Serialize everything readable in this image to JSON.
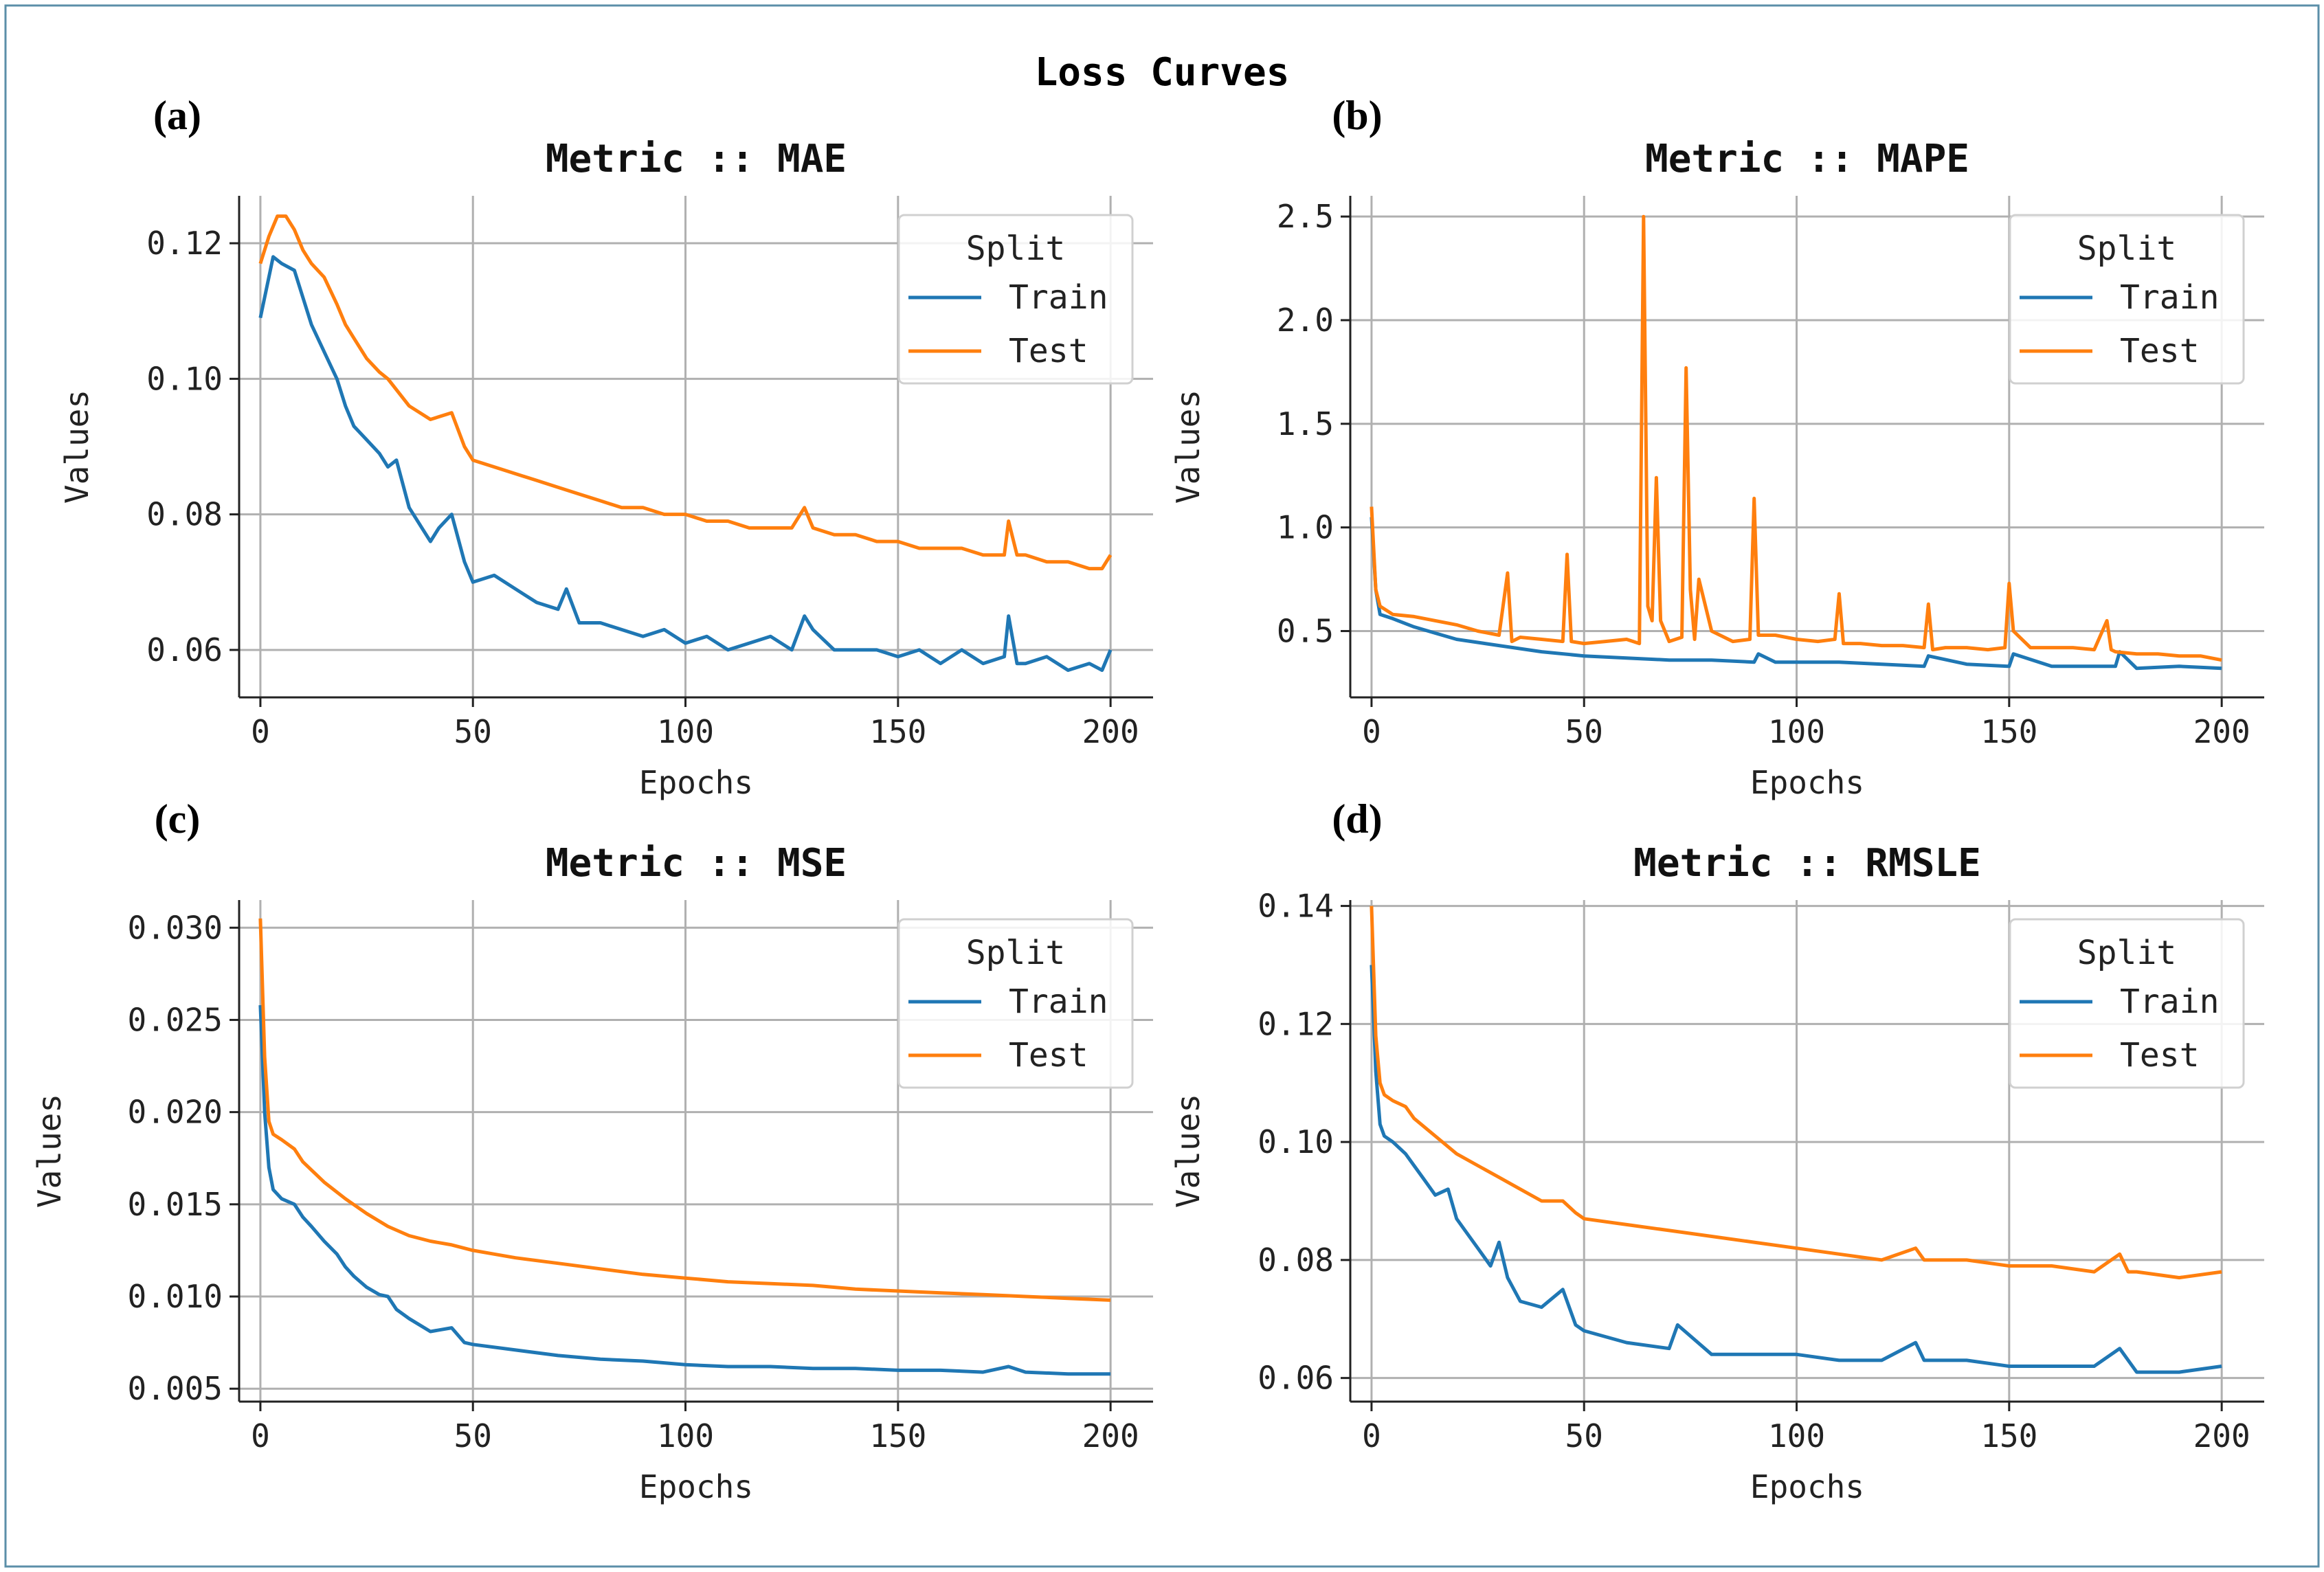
{
  "figure": {
    "title": "Loss Curves",
    "colors": {
      "train": "#1f77b4",
      "test": "#ff7f0e",
      "grid": "#b0b0b0",
      "border": "#5b8fa8"
    }
  },
  "chart_data": [
    {
      "panel_label": "(a)",
      "type": "line",
      "title": "Metric :: MAE",
      "xlabel": "Epochs",
      "ylabel": "Values",
      "xlim": [
        -5,
        210
      ],
      "ylim": [
        0.053,
        0.127
      ],
      "xticks": [
        0,
        50,
        100,
        150,
        200
      ],
      "yticks": [
        0.06,
        0.08,
        0.1,
        0.12
      ],
      "ytick_labels": [
        "0.06",
        "0.08",
        "0.10",
        "0.12"
      ],
      "grid": true,
      "legend": {
        "title": "Split",
        "position": "top-right",
        "entries": [
          "Train",
          "Test"
        ]
      },
      "series": [
        {
          "name": "Train",
          "x": [
            0,
            3,
            5,
            8,
            10,
            12,
            15,
            18,
            20,
            22,
            25,
            28,
            30,
            32,
            35,
            38,
            40,
            42,
            45,
            48,
            50,
            55,
            60,
            65,
            70,
            72,
            75,
            80,
            85,
            90,
            95,
            100,
            105,
            110,
            115,
            120,
            125,
            128,
            130,
            135,
            140,
            145,
            150,
            155,
            160,
            165,
            170,
            175,
            176,
            178,
            180,
            185,
            190,
            195,
            198,
            200
          ],
          "values": [
            0.109,
            0.118,
            0.117,
            0.116,
            0.112,
            0.108,
            0.104,
            0.1,
            0.096,
            0.093,
            0.091,
            0.089,
            0.087,
            0.088,
            0.081,
            0.078,
            0.076,
            0.078,
            0.08,
            0.073,
            0.07,
            0.071,
            0.069,
            0.067,
            0.066,
            0.069,
            0.064,
            0.064,
            0.063,
            0.062,
            0.063,
            0.061,
            0.062,
            0.06,
            0.061,
            0.062,
            0.06,
            0.065,
            0.063,
            0.06,
            0.06,
            0.06,
            0.059,
            0.06,
            0.058,
            0.06,
            0.058,
            0.059,
            0.065,
            0.058,
            0.058,
            0.059,
            0.057,
            0.058,
            0.057,
            0.06
          ]
        },
        {
          "name": "Test",
          "x": [
            0,
            2,
            4,
            6,
            8,
            10,
            12,
            15,
            18,
            20,
            22,
            25,
            28,
            30,
            35,
            40,
            45,
            48,
            50,
            55,
            60,
            65,
            70,
            75,
            80,
            85,
            90,
            95,
            100,
            105,
            110,
            115,
            120,
            125,
            128,
            130,
            135,
            140,
            145,
            150,
            155,
            160,
            165,
            170,
            175,
            176,
            178,
            180,
            185,
            190,
            195,
            198,
            200
          ],
          "values": [
            0.117,
            0.121,
            0.124,
            0.124,
            0.122,
            0.119,
            0.117,
            0.115,
            0.111,
            0.108,
            0.106,
            0.103,
            0.101,
            0.1,
            0.096,
            0.094,
            0.095,
            0.09,
            0.088,
            0.087,
            0.086,
            0.085,
            0.084,
            0.083,
            0.082,
            0.081,
            0.081,
            0.08,
            0.08,
            0.079,
            0.079,
            0.078,
            0.078,
            0.078,
            0.081,
            0.078,
            0.077,
            0.077,
            0.076,
            0.076,
            0.075,
            0.075,
            0.075,
            0.074,
            0.074,
            0.079,
            0.074,
            0.074,
            0.073,
            0.073,
            0.072,
            0.072,
            0.074
          ]
        }
      ]
    },
    {
      "panel_label": "(b)",
      "type": "line",
      "title": "Metric :: MAPE",
      "xlabel": "Epochs",
      "ylabel": "Values",
      "xlim": [
        -5,
        210
      ],
      "ylim": [
        0.18,
        2.6
      ],
      "xticks": [
        0,
        50,
        100,
        150,
        200
      ],
      "yticks": [
        0.5,
        1.0,
        1.5,
        2.0,
        2.5
      ],
      "ytick_labels": [
        "0.5",
        "1.0",
        "1.5",
        "2.0",
        "2.5"
      ],
      "grid": true,
      "legend": {
        "title": "Split",
        "position": "top-right",
        "entries": [
          "Train",
          "Test"
        ]
      },
      "series": [
        {
          "name": "Train",
          "x": [
            0,
            1,
            2,
            5,
            10,
            15,
            20,
            30,
            40,
            50,
            60,
            70,
            80,
            90,
            91,
            95,
            100,
            110,
            120,
            130,
            131,
            140,
            150,
            151,
            160,
            170,
            175,
            176,
            180,
            190,
            200
          ],
          "values": [
            1.05,
            0.7,
            0.58,
            0.56,
            0.52,
            0.49,
            0.46,
            0.43,
            0.4,
            0.38,
            0.37,
            0.36,
            0.36,
            0.35,
            0.39,
            0.35,
            0.35,
            0.35,
            0.34,
            0.33,
            0.38,
            0.34,
            0.33,
            0.39,
            0.33,
            0.33,
            0.33,
            0.4,
            0.32,
            0.33,
            0.32
          ]
        },
        {
          "name": "Test",
          "x": [
            0,
            1,
            2,
            5,
            10,
            15,
            20,
            25,
            30,
            32,
            33,
            35,
            40,
            45,
            46,
            47,
            50,
            55,
            60,
            63,
            64,
            65,
            66,
            67,
            68,
            70,
            73,
            74,
            75,
            76,
            77,
            80,
            85,
            89,
            90,
            91,
            95,
            100,
            105,
            109,
            110,
            111,
            115,
            120,
            125,
            130,
            131,
            132,
            135,
            140,
            145,
            149,
            150,
            151,
            155,
            160,
            165,
            170,
            173,
            174,
            175,
            180,
            185,
            190,
            195,
            200
          ],
          "values": [
            1.1,
            0.7,
            0.62,
            0.58,
            0.57,
            0.55,
            0.53,
            0.5,
            0.48,
            0.78,
            0.45,
            0.47,
            0.46,
            0.45,
            0.87,
            0.45,
            0.44,
            0.45,
            0.46,
            0.44,
            2.5,
            0.62,
            0.55,
            1.24,
            0.55,
            0.45,
            0.47,
            1.77,
            0.7,
            0.46,
            0.75,
            0.5,
            0.45,
            0.46,
            1.14,
            0.48,
            0.48,
            0.46,
            0.45,
            0.46,
            0.68,
            0.44,
            0.44,
            0.43,
            0.43,
            0.42,
            0.63,
            0.41,
            0.42,
            0.42,
            0.41,
            0.42,
            0.73,
            0.5,
            0.42,
            0.42,
            0.42,
            0.41,
            0.55,
            0.41,
            0.4,
            0.39,
            0.39,
            0.38,
            0.38,
            0.36
          ]
        }
      ]
    },
    {
      "panel_label": "(c)",
      "type": "line",
      "title": "Metric :: MSE",
      "xlabel": "Epochs",
      "ylabel": "Values",
      "xlim": [
        -5,
        210
      ],
      "ylim": [
        0.0043,
        0.0315
      ],
      "xticks": [
        0,
        50,
        100,
        150,
        200
      ],
      "yticks": [
        0.005,
        0.01,
        0.015,
        0.02,
        0.025,
        0.03
      ],
      "ytick_labels": [
        "0.005",
        "0.010",
        "0.015",
        "0.020",
        "0.025",
        "0.030"
      ],
      "grid": true,
      "legend": {
        "title": "Split",
        "position": "top-right",
        "entries": [
          "Train",
          "Test"
        ]
      },
      "series": [
        {
          "name": "Train",
          "x": [
            0,
            1,
            2,
            3,
            5,
            8,
            10,
            12,
            15,
            18,
            20,
            22,
            25,
            28,
            30,
            32,
            35,
            40,
            45,
            48,
            50,
            60,
            70,
            80,
            90,
            100,
            110,
            120,
            130,
            140,
            150,
            160,
            170,
            176,
            180,
            190,
            200
          ],
          "values": [
            0.0258,
            0.02,
            0.017,
            0.0158,
            0.0153,
            0.015,
            0.0143,
            0.0138,
            0.013,
            0.0123,
            0.0116,
            0.0111,
            0.0105,
            0.0101,
            0.01,
            0.0093,
            0.0088,
            0.0081,
            0.0083,
            0.0075,
            0.0074,
            0.0071,
            0.0068,
            0.0066,
            0.0065,
            0.0063,
            0.0062,
            0.0062,
            0.0061,
            0.0061,
            0.006,
            0.006,
            0.0059,
            0.0062,
            0.0059,
            0.0058,
            0.0058
          ]
        },
        {
          "name": "Test",
          "x": [
            0,
            1,
            2,
            3,
            5,
            8,
            10,
            15,
            20,
            25,
            30,
            35,
            40,
            45,
            50,
            55,
            60,
            70,
            80,
            90,
            100,
            110,
            120,
            130,
            140,
            150,
            160,
            170,
            180,
            190,
            200
          ],
          "values": [
            0.0305,
            0.023,
            0.0195,
            0.0188,
            0.0185,
            0.018,
            0.0173,
            0.0162,
            0.0153,
            0.0145,
            0.0138,
            0.0133,
            0.013,
            0.0128,
            0.0125,
            0.0123,
            0.0121,
            0.0118,
            0.0115,
            0.0112,
            0.011,
            0.0108,
            0.0107,
            0.0106,
            0.0104,
            0.0103,
            0.0102,
            0.0101,
            0.01,
            0.0099,
            0.0098
          ]
        }
      ]
    },
    {
      "panel_label": "(d)",
      "type": "line",
      "title": "Metric :: RMSLE",
      "xlabel": "Epochs",
      "ylabel": "Values",
      "xlim": [
        -5,
        210
      ],
      "ylim": [
        0.056,
        0.141
      ],
      "xticks": [
        0,
        50,
        100,
        150,
        200
      ],
      "yticks": [
        0.06,
        0.08,
        0.1,
        0.12,
        0.14
      ],
      "ytick_labels": [
        "0.06",
        "0.08",
        "0.10",
        "0.12",
        "0.14"
      ],
      "grid": true,
      "legend": {
        "title": "Split",
        "position": "top-right",
        "entries": [
          "Train",
          "Test"
        ]
      },
      "series": [
        {
          "name": "Train",
          "x": [
            0,
            1,
            2,
            3,
            5,
            8,
            10,
            12,
            15,
            18,
            20,
            22,
            25,
            28,
            30,
            32,
            35,
            40,
            45,
            48,
            50,
            60,
            70,
            72,
            80,
            90,
            100,
            110,
            120,
            128,
            130,
            140,
            150,
            160,
            170,
            176,
            180,
            190,
            200
          ],
          "values": [
            0.13,
            0.112,
            0.103,
            0.101,
            0.1,
            0.098,
            0.096,
            0.094,
            0.091,
            0.092,
            0.087,
            0.085,
            0.082,
            0.079,
            0.083,
            0.077,
            0.073,
            0.072,
            0.075,
            0.069,
            0.068,
            0.066,
            0.065,
            0.069,
            0.064,
            0.064,
            0.064,
            0.063,
            0.063,
            0.066,
            0.063,
            0.063,
            0.062,
            0.062,
            0.062,
            0.065,
            0.061,
            0.061,
            0.062
          ]
        },
        {
          "name": "Test",
          "x": [
            0,
            1,
            2,
            3,
            5,
            8,
            10,
            15,
            20,
            25,
            30,
            35,
            40,
            45,
            48,
            50,
            60,
            70,
            80,
            90,
            100,
            110,
            120,
            128,
            130,
            140,
            150,
            160,
            170,
            176,
            178,
            180,
            190,
            200
          ],
          "values": [
            0.14,
            0.118,
            0.11,
            0.108,
            0.107,
            0.106,
            0.104,
            0.101,
            0.098,
            0.096,
            0.094,
            0.092,
            0.09,
            0.09,
            0.088,
            0.087,
            0.086,
            0.085,
            0.084,
            0.083,
            0.082,
            0.081,
            0.08,
            0.082,
            0.08,
            0.08,
            0.079,
            0.079,
            0.078,
            0.081,
            0.078,
            0.078,
            0.077,
            0.078
          ]
        }
      ]
    }
  ]
}
